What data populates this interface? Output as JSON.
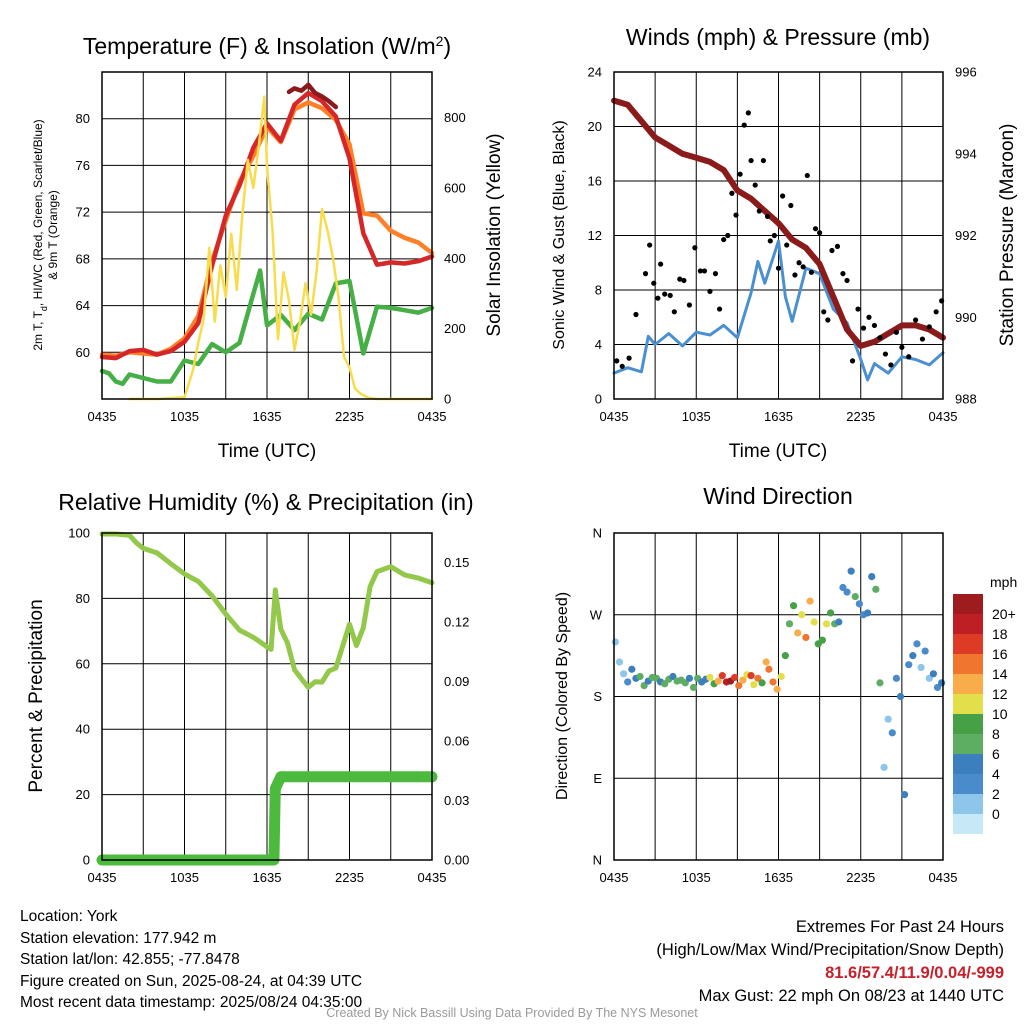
{
  "chart_data": [
    {
      "type": "line",
      "title_main": "Temperature (F) & Insolation (W/m",
      "title_sup": "2",
      "title_end": ")",
      "xlabel": "Time (UTC)",
      "ylabel_lines": [
        "2m T, T",
        "d",
        ", HI/WC (Red, Green, Scarlet/Blue)",
        "& 9m T (Orange)"
      ],
      "ylabel2": "Solar Insolation (Yellow)",
      "x_ticks": [
        "0435",
        "1035",
        "1635",
        "2235",
        "0435"
      ],
      "x_hours": [
        0,
        6,
        12,
        18,
        24
      ],
      "ylim": [
        56,
        84
      ],
      "y_ticks": [
        60,
        64,
        68,
        72,
        76,
        80
      ],
      "y2lim": [
        0,
        930
      ],
      "y2_ticks": [
        0,
        200,
        400,
        600,
        800
      ],
      "series": [
        {
          "color": "#ff7f27",
          "x": [
            0,
            1,
            2,
            3,
            4,
            5,
            6,
            7,
            8,
            9,
            10,
            11,
            12,
            13,
            14,
            15,
            16,
            17,
            18,
            19,
            20,
            21,
            22,
            23,
            24
          ],
          "y": [
            59.8,
            59.7,
            60,
            59.9,
            59.8,
            60.3,
            61.2,
            63.1,
            67.8,
            71.3,
            74.6,
            76.8,
            79.3,
            78,
            80.8,
            81.4,
            80.9,
            79.9,
            77.8,
            71.9,
            71.7,
            70.4,
            69.8,
            69.4,
            68.5
          ]
        },
        {
          "color": "#d62728",
          "x": [
            0,
            1,
            2,
            3,
            4,
            5,
            6,
            7,
            8,
            9,
            10,
            11,
            12,
            13,
            14,
            15,
            16,
            17,
            18,
            19,
            20,
            21,
            22,
            23,
            24
          ],
          "y": [
            59.6,
            59.5,
            60.1,
            60.2,
            59.8,
            60.1,
            60.9,
            62.5,
            67.4,
            71.7,
            74.3,
            77.5,
            79.6,
            78.1,
            81.2,
            82.2,
            81.5,
            80.2,
            76.6,
            70.2,
            67.5,
            67.7,
            67.6,
            67.8,
            68.2
          ]
        },
        {
          "color": "#46b046",
          "x": [
            0,
            0.5,
            1,
            1.5,
            2,
            3,
            4,
            5,
            6,
            7,
            8,
            9,
            10,
            11,
            11.5,
            12,
            13,
            14,
            15,
            16,
            17,
            18,
            19,
            20,
            21,
            22,
            23,
            24
          ],
          "y": [
            58.4,
            58.2,
            57.5,
            57.3,
            58.1,
            57.8,
            57.5,
            57.5,
            59.3,
            59,
            60.7,
            60,
            60.8,
            65,
            67,
            62.3,
            63.2,
            61.9,
            63.3,
            62.8,
            65.9,
            66.1,
            59.9,
            63.9,
            63.8,
            63.6,
            63.4,
            63.8
          ]
        },
        {
          "color": "#8b1a1a",
          "x": [
            13.6,
            14,
            14.5,
            15,
            15.5,
            16,
            16.5,
            17
          ],
          "y": [
            82.3,
            82.6,
            82.4,
            82.9,
            82.2,
            81.9,
            81.5,
            81
          ]
        },
        {
          "color": "#f7dc4c",
          "axis": "right",
          "x": [
            2,
            4,
            6,
            6.6,
            7,
            7.4,
            7.8,
            8.2,
            8.6,
            9,
            9.4,
            9.8,
            10.2,
            10.6,
            11,
            11.4,
            11.8,
            12,
            12.4,
            12.8,
            13.2,
            13.6,
            14,
            14.4,
            14.8,
            15.2,
            15.6,
            16,
            16.4,
            16.8,
            17.2,
            17.6,
            18,
            18.4,
            18.8,
            19.4,
            20,
            22,
            24
          ],
          "y": [
            0,
            0,
            5,
            80,
            160,
            230,
            430,
            220,
            380,
            290,
            470,
            310,
            520,
            680,
            600,
            720,
            860,
            660,
            480,
            170,
            360,
            280,
            140,
            220,
            330,
            240,
            360,
            540,
            480,
            400,
            290,
            120,
            90,
            30,
            15,
            3,
            0,
            0,
            0
          ]
        }
      ]
    },
    {
      "type": "line",
      "title": "Winds (mph) & Pressure (mb)",
      "xlabel": "Time (UTC)",
      "ylabel": "Sonic Wind & Gust (Blue, Black)",
      "ylabel2": "Station Pressure (Maroon)",
      "x_ticks": [
        "0435",
        "1035",
        "1635",
        "2235",
        "0435"
      ],
      "x_hours": [
        0,
        6,
        12,
        18,
        24
      ],
      "ylim": [
        0,
        24
      ],
      "y_ticks": [
        0,
        4,
        8,
        12,
        16,
        20,
        24
      ],
      "y2lim": [
        988,
        996
      ],
      "y2_ticks": [
        988,
        990,
        992,
        994,
        996
      ],
      "series": [
        {
          "color": "#4a90d0",
          "x": [
            0,
            1,
            2,
            2.5,
            3,
            4,
            5,
            6,
            7,
            8,
            9,
            10,
            10.5,
            11,
            12,
            12.5,
            13,
            14,
            15,
            16,
            17,
            18,
            18.5,
            19,
            20,
            21,
            22,
            23,
            24
          ],
          "y": [
            1.9,
            2.3,
            2,
            4.6,
            4,
            4.8,
            3.9,
            4.9,
            4.7,
            5.4,
            4.5,
            7.8,
            10.1,
            8.5,
            11.6,
            7.5,
            5.7,
            9.6,
            9.2,
            6.6,
            5.6,
            2.9,
            1.4,
            2.6,
            1.9,
            3.1,
            2.9,
            2.5,
            3.4
          ]
        },
        {
          "color": "#8b1a1a",
          "axis": "right",
          "x": [
            0,
            1,
            2,
            3,
            4,
            5,
            6,
            7,
            8,
            9,
            10,
            11,
            12,
            13,
            14,
            15,
            16,
            17,
            18,
            19,
            20,
            21,
            22,
            23,
            24
          ],
          "y": [
            995.3,
            995.2,
            994.8,
            994.4,
            994.2,
            994,
            993.9,
            993.8,
            993.6,
            993.1,
            992.9,
            992.6,
            992.3,
            991.9,
            991.7,
            991.3,
            990.5,
            989.7,
            989.3,
            989.4,
            989.6,
            989.8,
            989.8,
            989.7,
            989.5
          ]
        }
      ],
      "gust_points": {
        "color": "#000000",
        "x": [
          0.2,
          0.6,
          1.1,
          1.6,
          2.3,
          2.6,
          2.9,
          3.2,
          3.4,
          3.7,
          4.1,
          4.4,
          4.8,
          5.1,
          5.5,
          5.9,
          6.3,
          6.6,
          7,
          7.4,
          7.7,
          8,
          8.3,
          8.6,
          8.9,
          9.2,
          9.5,
          9.8,
          10,
          10.3,
          10.6,
          10.9,
          11.2,
          11.4,
          11.7,
          12,
          12.3,
          12.6,
          12.9,
          13.2,
          13.5,
          13.8,
          14.1,
          14.4,
          14.7,
          15,
          15.3,
          15.6,
          15.9,
          16.3,
          16.7,
          17,
          17.4,
          17.8,
          18.2,
          18.6,
          19,
          19.4,
          19.8,
          20.2,
          20.6,
          21,
          21.5,
          22,
          22.5,
          23,
          23.5,
          23.9
        ],
        "y": [
          2.8,
          2.4,
          3,
          6.2,
          9.2,
          11.3,
          8.5,
          7.4,
          9.9,
          7.7,
          7.6,
          6.4,
          8.8,
          8.7,
          6.9,
          11.1,
          9.4,
          9.4,
          7.9,
          9.2,
          6.6,
          11.7,
          12,
          15.1,
          13.5,
          16.5,
          20.1,
          21,
          17.5,
          15.7,
          13.8,
          17.5,
          13.4,
          11.6,
          12,
          9.6,
          14.9,
          11.3,
          14.2,
          9.1,
          10,
          9.7,
          16.4,
          9.3,
          12.5,
          12.2,
          6.4,
          5.8,
          10.9,
          11.2,
          9.2,
          8.7,
          2.8,
          6.6,
          5.2,
          6,
          5.4,
          4.5,
          3.3,
          2.5,
          4.9,
          3.8,
          3.1,
          5.8,
          4.4,
          5.3,
          6.4,
          7.2
        ]
      }
    },
    {
      "type": "line",
      "title": "Relative Humidity (%) & Precipitation (in)",
      "ylabel": "Percent & Precipitation",
      "x_ticks": [
        "0435",
        "1035",
        "1635",
        "2235",
        "0435"
      ],
      "x_hours": [
        0,
        6,
        12,
        18,
        24
      ],
      "ylim": [
        0,
        100
      ],
      "y_ticks": [
        0,
        20,
        40,
        60,
        80,
        100
      ],
      "y2lim": [
        0,
        0.165
      ],
      "y2_ticks": [
        "0.00",
        "0.03",
        "0.06",
        "0.09",
        "0.12",
        "0.15"
      ],
      "y2_values": [
        0,
        0.03,
        0.06,
        0.09,
        0.12,
        0.15
      ],
      "series": [
        {
          "color": "#93c84a",
          "x": [
            0,
            1,
            2,
            2.5,
            3,
            4,
            5,
            6,
            7,
            8,
            9,
            10,
            11,
            11.5,
            12,
            12.3,
            12.6,
            13,
            13.5,
            14,
            14.5,
            15,
            15.5,
            16,
            16.5,
            17,
            18,
            18.5,
            19,
            19.5,
            20,
            21,
            22,
            23,
            24
          ],
          "y": [
            99.7,
            99.7,
            99.3,
            97,
            95.3,
            93.9,
            90.6,
            87.5,
            85.2,
            80.8,
            75.2,
            70.3,
            68.1,
            66.7,
            65.2,
            64.4,
            82.6,
            70.6,
            66.3,
            58.2,
            55.4,
            52.8,
            54.5,
            54.4,
            57.8,
            58.7,
            72.1,
            65.6,
            71,
            83.6,
            88.2,
            89.7,
            87.2,
            86.2,
            84.8
          ]
        },
        {
          "color": "#4cba3c",
          "axis": "right",
          "x": [
            0,
            1,
            2,
            3,
            4,
            5,
            6,
            7,
            8,
            9,
            10,
            11,
            12,
            12.5,
            12.6,
            13,
            14,
            15,
            16,
            17,
            18,
            19,
            20,
            21,
            22,
            23,
            24
          ],
          "y": [
            0,
            0,
            0,
            0,
            0,
            0,
            0,
            0,
            0,
            0,
            0,
            0,
            0,
            0,
            0.036,
            0.042,
            0.042,
            0.042,
            0.042,
            0.042,
            0.042,
            0.042,
            0.042,
            0.042,
            0.042,
            0.042,
            0.042
          ]
        }
      ]
    },
    {
      "type": "scatter",
      "title": "Wind Direction",
      "ylabel": "Direction (Colored By Speed)",
      "x_ticks": [
        "0435",
        "1035",
        "1635",
        "2235",
        "0435"
      ],
      "x_hours": [
        0,
        6,
        12,
        18,
        24
      ],
      "y_ticks": [
        "N",
        "E",
        "S",
        "W",
        "N"
      ],
      "y_degrees": [
        0,
        90,
        180,
        270,
        360
      ],
      "legend_title": "mph",
      "legend_labels": [
        "0",
        "2",
        "4",
        "6",
        "8",
        "10",
        "12",
        "14",
        "16",
        "18",
        "20+"
      ],
      "legend_colors": [
        "#c6e8f7",
        "#8ec5ea",
        "#4a8ccb",
        "#3c7fbf",
        "#5dad62",
        "#45a046",
        "#e3df4a",
        "#f8ad4a",
        "#f0752e",
        "#de3b26",
        "#bd1f25",
        "#9e1b1e"
      ],
      "points": {
        "x": [
          0.1,
          0.4,
          0.7,
          1,
          1.3,
          1.6,
          1.9,
          2.2,
          2.5,
          2.8,
          3.1,
          3.4,
          3.7,
          4,
          4.3,
          4.6,
          4.9,
          5.2,
          5.5,
          5.8,
          6.1,
          6.4,
          6.7,
          7,
          7.3,
          7.6,
          7.9,
          8.2,
          8.5,
          8.8,
          9.1,
          9.4,
          9.7,
          10,
          10.2,
          10.5,
          10.8,
          11.1,
          11.3,
          11.6,
          11.9,
          12.2,
          12.5,
          12.8,
          13.1,
          13.4,
          13.7,
          14,
          14.3,
          14.6,
          14.9,
          15.2,
          15.5,
          15.8,
          16.1,
          16.4,
          16.7,
          17,
          17.3,
          17.6,
          17.9,
          18.2,
          18.5,
          18.8,
          19.1,
          19.4,
          19.7,
          20,
          20.3,
          20.6,
          20.9,
          21.2,
          21.5,
          21.8,
          22.1,
          22.4,
          22.7,
          23,
          23.3,
          23.6,
          23.9
        ],
        "y": [
          240,
          218,
          205,
          196,
          210,
          200,
          202,
          192,
          197,
          201,
          200,
          196,
          194,
          199,
          202,
          197,
          198,
          195,
          200,
          190,
          200,
          196,
          199,
          201,
          194,
          197,
          203,
          196,
          197,
          201,
          192,
          198,
          204,
          203,
          193,
          200,
          195,
          218,
          210,
          196,
          188,
          202,
          225,
          260,
          280,
          250,
          270,
          245,
          285,
          262,
          238,
          242,
          260,
          272,
          260,
          262,
          300,
          295,
          318,
          290,
          282,
          270,
          272,
          312,
          298,
          195,
          102,
          155,
          140,
          200,
          180,
          72,
          215,
          225,
          238,
          212,
          230,
          200,
          205,
          190,
          195
        ],
        "speed": [
          1,
          1,
          1,
          2,
          3,
          3,
          4,
          4,
          3,
          4,
          4,
          3,
          4,
          4,
          3,
          4,
          4,
          4,
          3,
          4,
          4,
          3,
          3,
          6,
          5,
          7,
          9,
          10,
          11,
          9,
          8,
          7,
          6,
          9,
          6,
          8,
          5,
          7,
          8,
          8,
          7,
          6,
          5,
          4,
          5,
          7,
          6,
          8,
          7,
          6,
          5,
          5,
          6,
          5,
          4,
          3,
          2,
          2,
          3,
          4,
          2,
          2,
          3,
          3,
          4,
          4,
          1,
          1,
          2,
          2,
          3,
          3,
          2,
          3,
          2,
          1,
          2,
          1,
          3,
          2,
          3
        ]
      }
    }
  ],
  "info": {
    "location": "Location: York",
    "elevation": "Station elevation: 177.942 m",
    "latlon": "Station lat/lon: 42.855; -77.8478",
    "created": "Figure created on Sun, 2025-08-24, at 04:39 UTC",
    "recent": "Most recent data timestamp: 2025/08/24 04:35:00"
  },
  "extremes": {
    "title": "Extremes For Past 24 Hours",
    "subtitle": "(High/Low/Max Wind/Precipitation/Snow Depth)",
    "values": "81.6/57.4/11.9/0.04/-999",
    "gust": "Max Gust: 22 mph On 08/23 at 1440 UTC"
  },
  "credit": "Created By Nick Bassill Using Data Provided By The NYS Mesonet"
}
